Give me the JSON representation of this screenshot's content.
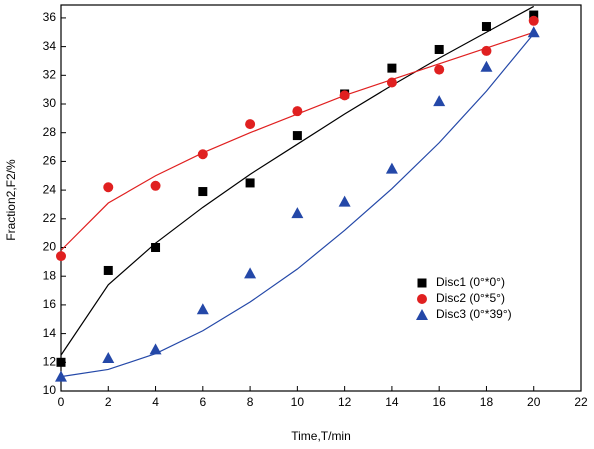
{
  "chart_data": {
    "type": "scatter",
    "xlabel": "Time,T/min",
    "ylabel": "Fraction2,F2/%",
    "x": [
      0,
      2,
      4,
      6,
      8,
      10,
      12,
      14,
      16,
      18,
      20
    ],
    "series": [
      {
        "name": "Disc1 (0°*0°)",
        "color": "#000000",
        "marker": "square",
        "values": [
          12.0,
          18.4,
          20.0,
          23.9,
          24.5,
          27.8,
          30.7,
          32.5,
          33.8,
          35.4,
          36.2
        ],
        "fit": [
          12.5,
          17.4,
          20.3,
          22.8,
          25.1,
          27.2,
          29.3,
          31.3,
          33.2,
          35.0,
          36.8
        ]
      },
      {
        "name": "Disc2 (0°*5°)",
        "color": "#e02020",
        "marker": "circle",
        "values": [
          19.4,
          24.2,
          24.3,
          26.5,
          28.6,
          29.5,
          30.6,
          31.5,
          32.4,
          33.7,
          35.8
        ],
        "fit": [
          19.8,
          23.1,
          25.0,
          26.6,
          28.0,
          29.3,
          30.6,
          31.7,
          32.8,
          33.9,
          35.0
        ]
      },
      {
        "name": "Disc3 (0°*39°)",
        "color": "#2448a8",
        "marker": "triangle",
        "values": [
          11.0,
          12.3,
          12.9,
          15.7,
          18.2,
          22.4,
          23.2,
          25.5,
          30.2,
          32.6,
          35.0
        ],
        "fit": [
          11.0,
          11.5,
          12.6,
          14.2,
          16.2,
          18.5,
          21.2,
          24.1,
          27.3,
          30.9,
          34.9
        ]
      }
    ],
    "xlim": [
      0,
      22
    ],
    "xticks": [
      0,
      2,
      4,
      6,
      8,
      10,
      12,
      14,
      16,
      18,
      20,
      22
    ],
    "ylim": [
      10,
      36.9
    ],
    "yticks": [
      10,
      12,
      14,
      16,
      18,
      20,
      22,
      24,
      26,
      28,
      30,
      32,
      34,
      36
    ]
  }
}
